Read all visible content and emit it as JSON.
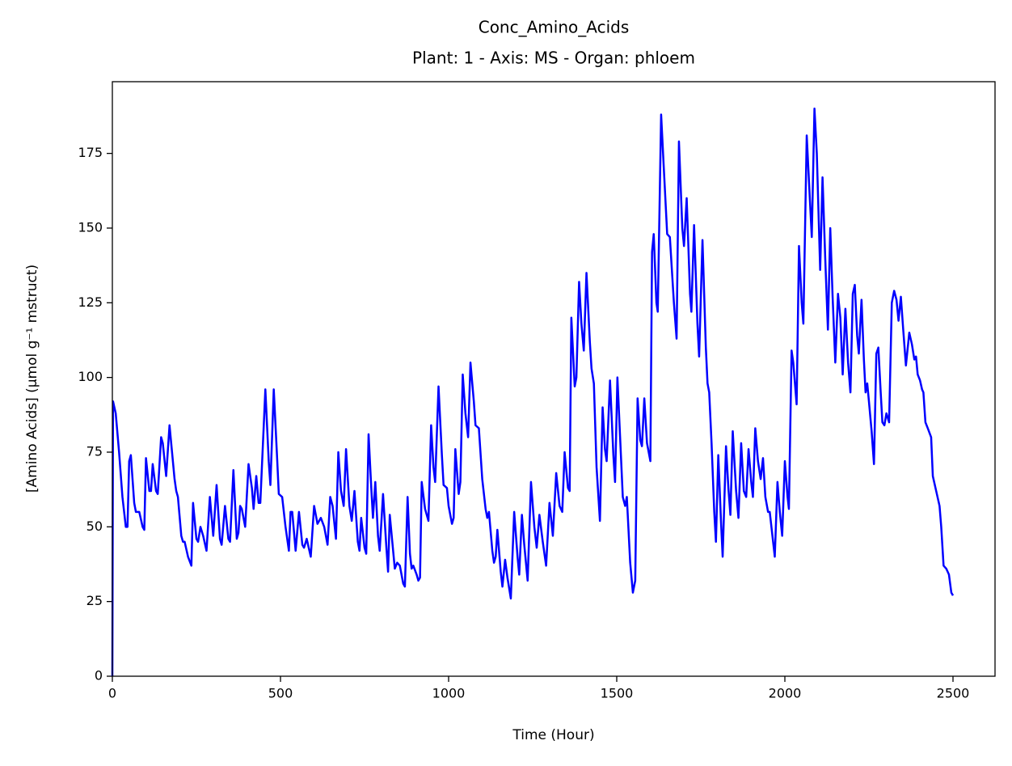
{
  "chart_data": {
    "type": "line",
    "title": "Conc_Amino_Acids",
    "subtitle": "Plant: 1 - Axis: MS - Organ: phloem",
    "xlabel": "Time (Hour)",
    "ylabel": "[Amino Acids] (μmol g⁻¹ mstruct)",
    "color": "#0000ff",
    "xlim": [
      0,
      2625
    ],
    "ylim": [
      0,
      199
    ],
    "xticks": [
      0,
      500,
      1000,
      1500,
      2000,
      2500
    ],
    "yticks": [
      0,
      25,
      50,
      75,
      100,
      125,
      150,
      175
    ],
    "grid": false,
    "x": [
      0,
      2,
      10,
      20,
      30,
      40,
      45,
      50,
      55,
      65,
      70,
      80,
      90,
      95,
      100,
      110,
      115,
      120,
      130,
      135,
      145,
      150,
      160,
      170,
      185,
      190,
      195,
      205,
      210,
      215,
      225,
      235,
      240,
      250,
      255,
      262,
      270,
      280,
      290,
      300,
      310,
      320,
      325,
      335,
      345,
      350,
      360,
      370,
      375,
      380,
      385,
      395,
      405,
      415,
      420,
      428,
      435,
      440,
      455,
      465,
      470,
      480,
      490,
      495,
      505,
      515,
      525,
      530,
      535,
      545,
      555,
      565,
      570,
      578,
      590,
      600,
      610,
      620,
      630,
      640,
      648,
      655,
      665,
      672,
      680,
      688,
      695,
      705,
      712,
      720,
      730,
      735,
      740,
      750,
      755,
      762,
      770,
      775,
      782,
      790,
      795,
      805,
      815,
      820,
      825,
      835,
      840,
      847,
      855,
      865,
      870,
      878,
      885,
      890,
      895,
      905,
      910,
      915,
      920,
      930,
      940,
      948,
      955,
      960,
      970,
      980,
      985,
      995,
      1000,
      1010,
      1015,
      1020,
      1030,
      1035,
      1042,
      1050,
      1058,
      1065,
      1075,
      1080,
      1090,
      1100,
      1110,
      1115,
      1120,
      1130,
      1135,
      1140,
      1145,
      1155,
      1160,
      1168,
      1175,
      1185,
      1195,
      1205,
      1210,
      1218,
      1225,
      1235,
      1245,
      1255,
      1262,
      1270,
      1280,
      1290,
      1300,
      1310,
      1320,
      1330,
      1338,
      1345,
      1355,
      1360,
      1365,
      1375,
      1380,
      1388,
      1395,
      1402,
      1410,
      1420,
      1425,
      1432,
      1440,
      1450,
      1458,
      1465,
      1470,
      1480,
      1490,
      1495,
      1502,
      1510,
      1518,
      1525,
      1530,
      1540,
      1548,
      1555,
      1562,
      1570,
      1575,
      1582,
      1590,
      1600,
      1605,
      1610,
      1618,
      1622,
      1632,
      1640,
      1650,
      1658,
      1670,
      1678,
      1685,
      1695,
      1700,
      1708,
      1718,
      1722,
      1730,
      1740,
      1745,
      1755,
      1765,
      1770,
      1775,
      1782,
      1790,
      1795,
      1802,
      1810,
      1815,
      1825,
      1832,
      1838,
      1845,
      1855,
      1862,
      1870,
      1878,
      1885,
      1892,
      1900,
      1905,
      1912,
      1920,
      1928,
      1935,
      1942,
      1950,
      1955,
      1965,
      1970,
      1978,
      1985,
      1992,
      2000,
      2008,
      2012,
      2020,
      2025,
      2035,
      2042,
      2050,
      2055,
      2065,
      2072,
      2080,
      2088,
      2095,
      2105,
      2112,
      2120,
      2128,
      2135,
      2142,
      2150,
      2158,
      2165,
      2172,
      2180,
      2188,
      2195,
      2202,
      2208,
      2215,
      2220,
      2228,
      2235,
      2240,
      2245,
      2250,
      2258,
      2265,
      2272,
      2278,
      2285,
      2290,
      2296,
      2302,
      2310,
      2318,
      2325,
      2332,
      2338,
      2345,
      2352,
      2360,
      2370,
      2378,
      2385,
      2390,
      2395,
      2402,
      2408,
      2412,
      2418,
      2425,
      2435,
      2440,
      2450,
      2460,
      2465,
      2472,
      2480,
      2488,
      2495,
      2500
    ],
    "values": [
      0,
      92,
      88,
      75,
      60,
      50,
      50,
      72,
      74,
      58,
      55,
      55,
      50,
      49,
      73,
      62,
      62,
      71,
      62,
      61,
      80,
      78,
      67,
      84,
      66,
      62,
      60,
      47,
      45,
      45,
      40,
      37,
      58,
      46,
      45,
      50,
      47,
      42,
      60,
      47,
      64,
      46,
      44,
      57,
      46,
      45,
      69,
      46,
      48,
      57,
      56,
      50,
      71,
      63,
      56,
      67,
      58,
      58,
      96,
      72,
      64,
      96,
      73,
      61,
      60,
      50,
      42,
      55,
      55,
      42,
      55,
      44,
      43,
      46,
      40,
      57,
      51,
      53,
      50,
      44,
      60,
      57,
      46,
      75,
      62,
      57,
      76,
      57,
      52,
      62,
      45,
      42,
      53,
      43,
      41,
      81,
      63,
      53,
      65,
      47,
      42,
      61,
      43,
      35,
      54,
      42,
      36,
      38,
      37,
      31,
      30,
      60,
      41,
      36,
      37,
      34,
      32,
      33,
      65,
      56,
      52,
      84,
      70,
      65,
      97,
      74,
      64,
      63,
      57,
      51,
      53,
      76,
      61,
      65,
      101,
      88,
      80,
      105,
      92,
      84,
      83,
      66,
      56,
      53,
      55,
      42,
      38,
      40,
      49,
      35,
      30,
      39,
      33,
      26,
      55,
      40,
      34,
      54,
      44,
      32,
      65,
      50,
      43,
      54,
      45,
      37,
      58,
      47,
      68,
      57,
      55,
      75,
      63,
      62,
      120,
      97,
      100,
      132,
      118,
      109,
      135,
      112,
      103,
      98,
      70,
      52,
      90,
      76,
      72,
      99,
      74,
      65,
      100,
      80,
      60,
      57,
      60,
      38,
      28,
      32,
      93,
      79,
      77,
      93,
      78,
      72,
      142,
      148,
      125,
      122,
      188,
      170,
      148,
      147,
      125,
      113,
      179,
      150,
      144,
      160,
      128,
      122,
      151,
      118,
      107,
      146,
      110,
      98,
      95,
      78,
      55,
      45,
      74,
      52,
      40,
      77,
      63,
      54,
      82,
      62,
      53,
      78,
      62,
      60,
      76,
      65,
      60,
      83,
      72,
      66,
      73,
      60,
      55,
      55,
      45,
      40,
      65,
      55,
      47,
      72,
      60,
      56,
      109,
      105,
      91,
      144,
      125,
      118,
      181,
      165,
      147,
      190,
      175,
      136,
      167,
      140,
      116,
      150,
      127,
      105,
      128,
      120,
      101,
      123,
      105,
      95,
      128,
      131,
      114,
      108,
      126,
      106,
      95,
      98,
      92,
      82,
      71,
      108,
      110,
      95,
      85,
      84,
      88,
      85,
      125,
      129,
      126,
      119,
      127,
      116,
      104,
      115,
      111,
      106,
      107,
      101,
      99,
      96,
      95,
      85,
      83,
      80,
      67,
      62,
      57,
      50,
      37,
      36,
      34,
      28,
      27
    ]
  }
}
